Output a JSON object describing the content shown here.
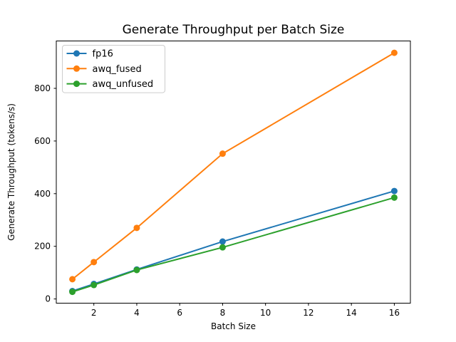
{
  "chart_data": {
    "type": "line",
    "title": "Generate Throughput per Batch Size",
    "xlabel": "Batch Size",
    "ylabel": "Generate Throughput (tokens/s)",
    "x": [
      1,
      2,
      4,
      8,
      16
    ],
    "series": [
      {
        "name": "fp16",
        "color": "#1f77b4",
        "values": [
          30,
          57,
          112,
          218,
          410
        ]
      },
      {
        "name": "awq_fused",
        "color": "#ff7f0e",
        "values": [
          75,
          140,
          270,
          552,
          935
        ]
      },
      {
        "name": "awq_unfused",
        "color": "#2ca02c",
        "values": [
          27,
          53,
          110,
          196,
          385
        ]
      }
    ],
    "xlim": [
      0.25,
      16.75
    ],
    "ylim": [
      -16,
      980
    ],
    "xticks": [
      2,
      4,
      6,
      8,
      10,
      12,
      14,
      16
    ],
    "yticks": [
      0,
      200,
      400,
      600,
      800
    ],
    "grid": false,
    "legend_position": "upper left",
    "marker": "o",
    "line_width": 2,
    "marker_radius": 4.5,
    "axis_color": "#000000",
    "legend_border_color": "#cccccc",
    "background": "#ffffff"
  }
}
